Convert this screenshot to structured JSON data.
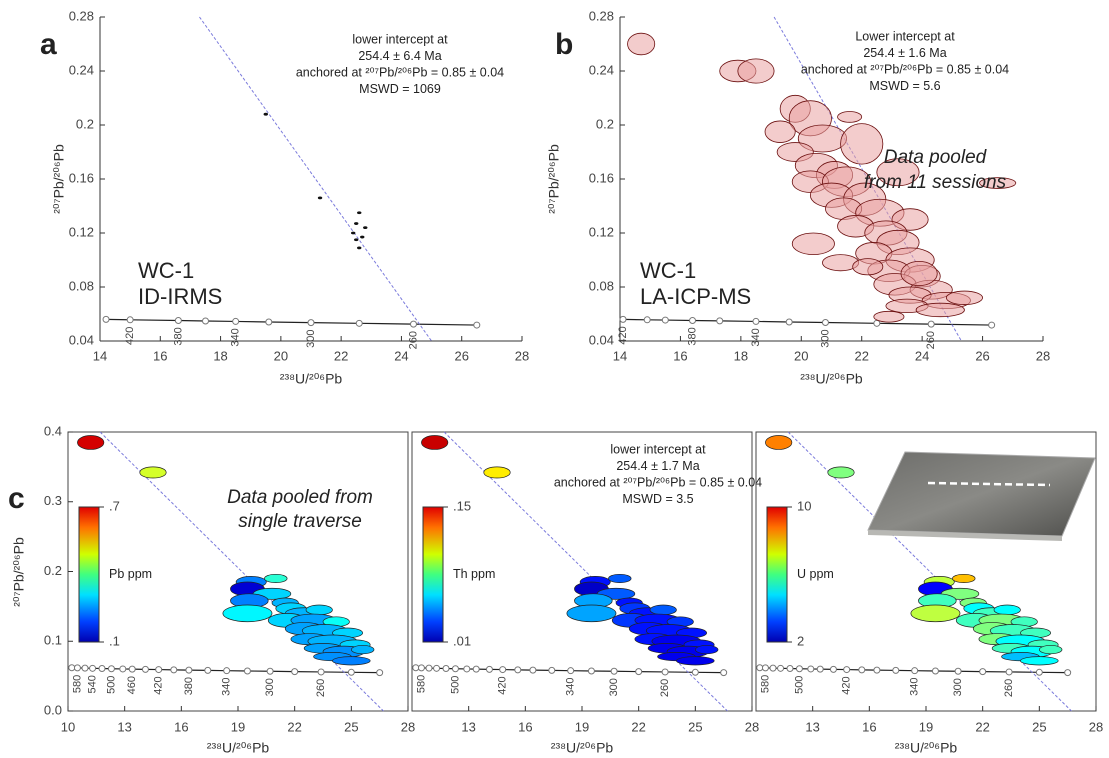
{
  "chart_data": [
    {
      "type": "scatter",
      "panel_label": "a",
      "xlabel": "²³⁸U/²⁰⁶Pb",
      "ylabel": "²⁰⁷Pb/²⁰⁶Pb",
      "annotation": [
        "lower intercept at",
        "254.4 ± 6.4 Ma",
        "anchored at ²⁰⁷Pb/²⁰⁶Pb = 0.85 ± 0.04",
        "MSWD = 1069"
      ],
      "sample_label": [
        "WC-1",
        "ID-IRMS"
      ],
      "xlim": [
        14,
        28
      ],
      "ylim": [
        0.04,
        0.28
      ],
      "xticks": [
        14,
        16,
        18,
        20,
        22,
        24,
        26,
        28
      ],
      "yticks": [
        0.04,
        0.08,
        0.12,
        0.16,
        0.2,
        0.24,
        0.28
      ],
      "color": "#111111",
      "x": [
        19.5,
        21.3,
        22.5,
        22.6,
        22.4,
        22.8,
        22.7,
        22.6,
        22.5
      ],
      "y": [
        0.208,
        0.146,
        0.127,
        0.135,
        0.12,
        0.124,
        0.117,
        0.109,
        0.115
      ],
      "concordia": {
        "x": [
          14.2,
          15.0,
          16.6,
          17.5,
          18.5,
          19.6,
          21.0,
          22.6,
          24.4,
          26.5
        ],
        "y": [
          0.056,
          0.0557,
          0.0552,
          0.0548,
          0.0545,
          0.0541,
          0.0536,
          0.0531,
          0.0525,
          0.0518
        ],
        "ages": [
          null,
          420,
          380,
          null,
          340,
          null,
          300,
          null,
          260,
          null
        ]
      },
      "discordia": {
        "x": [
          17.3,
          25.0
        ],
        "y": [
          0.28,
          0.04
        ],
        "color": "#7b7bdc"
      }
    },
    {
      "type": "ellipse",
      "panel_label": "b",
      "xlabel": "²³⁸U/²⁰⁶Pb",
      "ylabel": "²⁰⁷Pb/²⁰⁶Pb",
      "annotation": [
        "Lower intercept at",
        "254.4 ± 1.6 Ma",
        "anchored at ²⁰⁷Pb/²⁰⁶Pb = 0.85 ± 0.04",
        "MSWD = 5.6"
      ],
      "sample_label": [
        "WC-1",
        "LA-ICP-MS"
      ],
      "pooled_label": [
        "Data pooled",
        "from 11 sessions"
      ],
      "xlim": [
        14,
        28
      ],
      "ylim": [
        0.04,
        0.28
      ],
      "xticks": [
        14,
        16,
        18,
        20,
        22,
        24,
        26,
        28
      ],
      "yticks": [
        0.04,
        0.08,
        0.12,
        0.16,
        0.2,
        0.24,
        0.28
      ],
      "color": "#e9a3a3",
      "edge_color": "#6b0f0f",
      "x": [
        14.7,
        17.9,
        18.5,
        19.8,
        20.3,
        21.6,
        19.3,
        20.7,
        22.0,
        19.8,
        20.5,
        21.1,
        20.3,
        21.5,
        23.2,
        26.5,
        21.0,
        22.1,
        21.4,
        22.6,
        23.6,
        21.8,
        22.8,
        20.4,
        23.2,
        22.4,
        23.6,
        21.3,
        22.9,
        24.0,
        23.1,
        24.3,
        23.6,
        24.8,
        25.4,
        23.5,
        24.6,
        22.9,
        23.9,
        22.2
      ],
      "y": [
        0.26,
        0.24,
        0.24,
        0.212,
        0.205,
        0.206,
        0.195,
        0.19,
        0.186,
        0.18,
        0.17,
        0.163,
        0.158,
        0.158,
        0.165,
        0.157,
        0.148,
        0.145,
        0.138,
        0.135,
        0.13,
        0.125,
        0.12,
        0.112,
        0.113,
        0.105,
        0.1,
        0.098,
        0.092,
        0.088,
        0.082,
        0.078,
        0.074,
        0.07,
        0.072,
        0.066,
        0.063,
        0.058,
        0.09,
        0.095
      ],
      "x_err": [
        0.45,
        0.6,
        0.6,
        0.5,
        0.7,
        0.4,
        0.5,
        0.8,
        0.7,
        0.6,
        0.7,
        0.6,
        0.6,
        0.8,
        0.7,
        0.6,
        0.7,
        0.7,
        0.6,
        0.8,
        0.6,
        0.6,
        0.7,
        0.7,
        0.7,
        0.6,
        0.8,
        0.6,
        0.7,
        0.6,
        0.7,
        0.7,
        0.7,
        0.8,
        0.6,
        0.7,
        0.8,
        0.5,
        0.6,
        0.5
      ],
      "y_err": [
        0.008,
        0.008,
        0.009,
        0.01,
        0.013,
        0.004,
        0.008,
        0.01,
        0.015,
        0.007,
        0.009,
        0.01,
        0.008,
        0.011,
        0.01,
        0.004,
        0.009,
        0.012,
        0.008,
        0.01,
        0.008,
        0.008,
        0.009,
        0.008,
        0.009,
        0.008,
        0.009,
        0.006,
        0.008,
        0.008,
        0.008,
        0.007,
        0.006,
        0.006,
        0.005,
        0.005,
        0.005,
        0.004,
        0.009,
        0.006
      ],
      "concordia": {
        "x": [
          14.1,
          14.9,
          15.5,
          16.4,
          17.3,
          18.5,
          19.6,
          20.8,
          22.5,
          24.3,
          26.3
        ],
        "y": [
          0.056,
          0.0557,
          0.0555,
          0.0552,
          0.0549,
          0.0545,
          0.0541,
          0.0537,
          0.0531,
          0.0525,
          0.0518
        ],
        "ages": [
          420,
          null,
          null,
          380,
          null,
          340,
          null,
          300,
          null,
          260,
          null
        ]
      },
      "discordia": {
        "x": [
          19.1,
          25.3
        ],
        "y": [
          0.28,
          0.04
        ],
        "color": "#7b7bdc"
      }
    },
    {
      "type": "ellipse-map",
      "panel_label": "c",
      "xlabel": "²³⁸U/²⁰⁶Pb",
      "ylabel": "²⁰⁷Pb/²⁰⁶Pb",
      "xlim": [
        10,
        28
      ],
      "ylim": [
        0,
        0.4
      ],
      "yticks": [
        {
          "value": 0,
          "label": "0.0"
        },
        0.1,
        0.2,
        0.3,
        0.4
      ],
      "x": [
        11.2,
        14.5,
        19.7,
        21.0,
        19.5,
        20.8,
        19.6,
        21.5,
        19.5,
        21.8,
        22.5,
        23.3,
        21.6,
        23.0,
        24.2,
        22.5,
        23.6,
        24.8,
        22.8,
        24.0,
        25.2,
        23.5,
        24.6,
        25.6,
        24.0,
        25.0
      ],
      "y": [
        0.385,
        0.342,
        0.185,
        0.19,
        0.175,
        0.168,
        0.158,
        0.155,
        0.14,
        0.147,
        0.14,
        0.145,
        0.13,
        0.13,
        0.128,
        0.118,
        0.115,
        0.112,
        0.103,
        0.1,
        0.095,
        0.09,
        0.085,
        0.088,
        0.078,
        0.072
      ],
      "x_err": [
        0.7,
        0.7,
        0.8,
        0.6,
        0.9,
        1.0,
        1.0,
        0.7,
        1.3,
        0.8,
        1.0,
        0.7,
        1.0,
        1.2,
        0.7,
        1.0,
        1.2,
        0.8,
        1.0,
        1.3,
        0.8,
        1.0,
        1.1,
        0.6,
        1.0,
        1.0
      ],
      "y_err": [
        0.01,
        0.008,
        0.008,
        0.006,
        0.01,
        0.008,
        0.01,
        0.007,
        0.012,
        0.008,
        0.008,
        0.007,
        0.01,
        0.009,
        0.007,
        0.009,
        0.009,
        0.007,
        0.008,
        0.009,
        0.007,
        0.007,
        0.008,
        0.006,
        0.006,
        0.006
      ],
      "concordia": {
        "x": [
          10.2,
          10.5,
          10.9,
          11.3,
          11.8,
          12.3,
          12.9,
          13.4,
          14.1,
          14.8,
          15.6,
          16.4,
          17.4,
          18.4,
          19.5,
          20.7,
          22.0,
          23.4,
          25.0,
          26.5
        ],
        "y": [
          0.062,
          0.0618,
          0.0615,
          0.0612,
          0.0609,
          0.0606,
          0.0603,
          0.06,
          0.0597,
          0.0594,
          0.059,
          0.0586,
          0.0582,
          0.0578,
          0.0574,
          0.057,
          0.0565,
          0.056,
          0.0555,
          0.055
        ]
      },
      "discordia": {
        "x": [
          11.7,
          26.7
        ],
        "y": [
          0.4,
          0
        ],
        "color": "#7b7bdc"
      },
      "panels": [
        {
          "xticks": [
            10,
            13,
            16,
            19,
            22,
            25,
            28
          ],
          "color_label": "Pb ppm",
          "clim": [
            0.1,
            0.7
          ],
          "cticks": [
            {
              "value": 0.7,
              "label": ".7"
            },
            {
              "value": 0.1,
              "label": ".1"
            }
          ],
          "pooled_label": [
            "Data pooled from",
            "single traverse"
          ],
          "ages": [
            null,
            580,
            null,
            540,
            null,
            500,
            null,
            460,
            null,
            420,
            null,
            380,
            null,
            340,
            null,
            300,
            null,
            260,
            null,
            null
          ],
          "values": [
            0.65,
            0.45,
            0.25,
            0.35,
            0.15,
            0.3,
            0.25,
            0.28,
            0.32,
            0.3,
            0.28,
            0.3,
            0.3,
            0.27,
            0.33,
            0.27,
            0.28,
            0.3,
            0.27,
            0.28,
            0.3,
            0.27,
            0.26,
            0.28,
            0.26,
            0.25
          ]
        },
        {
          "xticks": [
            13,
            16,
            19,
            22,
            25,
            28
          ],
          "color_label": "Th ppm",
          "clim": [
            0.01,
            0.15
          ],
          "cticks": [
            {
              "value": 0.15,
              "label": ".15"
            },
            {
              "value": 0.01,
              "label": ".01"
            }
          ],
          "annotation": [
            "lower intercept at",
            "254.4 ± 1.7 Ma",
            "anchored at ²⁰⁷Pb/²⁰⁶Pb = 0.85 ± 0.04",
            "MSWD = 3.5"
          ],
          "ages": [
            null,
            580,
            null,
            null,
            null,
            500,
            null,
            null,
            null,
            420,
            null,
            null,
            null,
            340,
            null,
            300,
            null,
            260,
            null,
            null
          ],
          "values": [
            0.14,
            0.1,
            0.03,
            0.04,
            0.02,
            0.04,
            0.05,
            0.03,
            0.05,
            0.035,
            0.03,
            0.04,
            0.035,
            0.03,
            0.035,
            0.03,
            0.03,
            0.03,
            0.03,
            0.025,
            0.03,
            0.025,
            0.025,
            0.03,
            0.025,
            0.025
          ]
        },
        {
          "xticks": [
            13,
            16,
            19,
            22,
            25,
            28
          ],
          "color_label": "U ppm",
          "clim": [
            2,
            10
          ],
          "cticks": [
            10,
            2
          ],
          "ages": [
            null,
            580,
            null,
            null,
            null,
            500,
            null,
            null,
            null,
            420,
            null,
            null,
            null,
            340,
            null,
            300,
            null,
            260,
            null,
            null
          ],
          "values": [
            8.0,
            6.0,
            6.5,
            7.5,
            3.0,
            6.0,
            5.5,
            6.0,
            6.5,
            5.0,
            5.5,
            5.0,
            5.5,
            6.0,
            5.5,
            6.0,
            5.5,
            5.5,
            6.0,
            5.0,
            5.5,
            5.5,
            5.0,
            5.5,
            4.5,
            5.0
          ]
        }
      ]
    }
  ]
}
